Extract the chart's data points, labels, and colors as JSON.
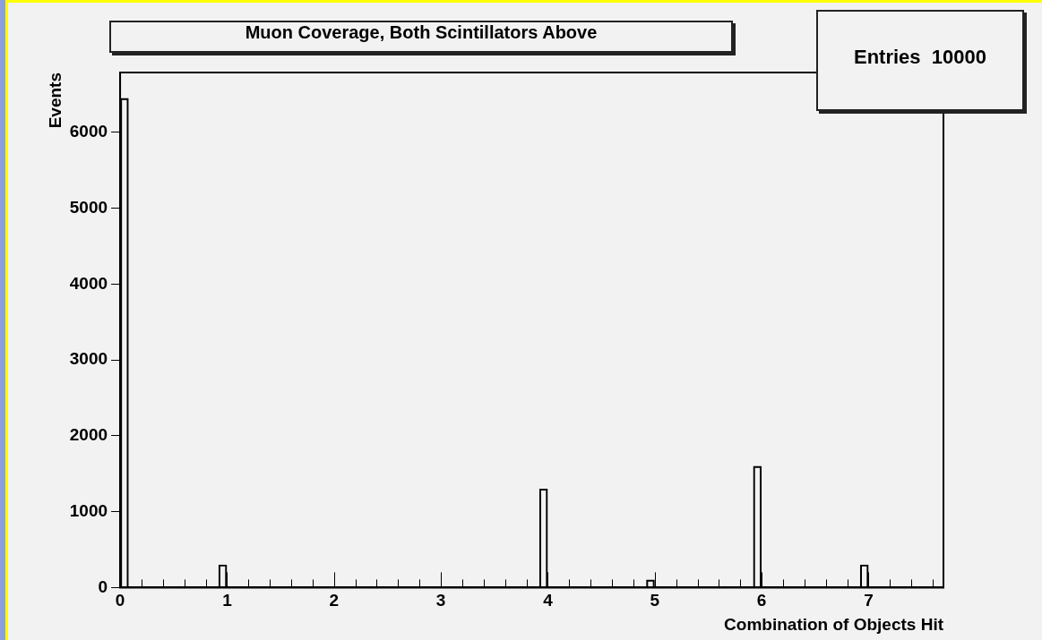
{
  "chart_data": {
    "type": "bar",
    "title": "Muon Coverage, Both Scintillators Above",
    "xlabel": "Combination of Objects Hit",
    "ylabel": "Events",
    "annotations": [
      "Entries  10000"
    ],
    "x": [
      0.04,
      0.96,
      3.96,
      4.96,
      5.96,
      6.96
    ],
    "values": [
      6450,
      300,
      1300,
      100,
      1600,
      300
    ],
    "color": "#000000",
    "xlim": [
      0,
      7.7
    ],
    "xticks": [
      0,
      {
        "value": 0.2,
        "label": null
      },
      {
        "value": 0.4,
        "label": null
      },
      {
        "value": 0.6,
        "label": null
      },
      {
        "value": 0.8,
        "label": null
      },
      1,
      {
        "value": 1.2,
        "label": null
      },
      {
        "value": 1.4,
        "label": null
      },
      {
        "value": 1.6,
        "label": null
      },
      {
        "value": 1.8,
        "label": null
      },
      2,
      {
        "value": 2.2,
        "label": null
      },
      {
        "value": 2.4,
        "label": null
      },
      {
        "value": 2.6,
        "label": null
      },
      {
        "value": 2.8,
        "label": null
      },
      3,
      {
        "value": 3.2,
        "label": null
      },
      {
        "value": 3.4,
        "label": null
      },
      {
        "value": 3.6,
        "label": null
      },
      {
        "value": 3.8,
        "label": null
      },
      4,
      {
        "value": 4.2,
        "label": null
      },
      {
        "value": 4.4,
        "label": null
      },
      {
        "value": 4.6,
        "label": null
      },
      {
        "value": 4.8,
        "label": null
      },
      5,
      {
        "value": 5.2,
        "label": null
      },
      {
        "value": 5.4,
        "label": null
      },
      {
        "value": 5.6,
        "label": null
      },
      {
        "value": 5.8,
        "label": null
      },
      6,
      {
        "value": 6.2,
        "label": null
      },
      {
        "value": 6.4,
        "label": null
      },
      {
        "value": 6.6,
        "label": null
      },
      {
        "value": 6.8,
        "label": null
      },
      7,
      {
        "value": 7.2,
        "label": null
      },
      {
        "value": 7.4,
        "label": null
      },
      {
        "value": 7.6,
        "label": null
      }
    ],
    "ylim": [
      0,
      6790
    ],
    "yticks": [
      0,
      1000,
      2000,
      3000,
      4000,
      5000,
      6000
    ],
    "grid": false,
    "legend": false
  }
}
